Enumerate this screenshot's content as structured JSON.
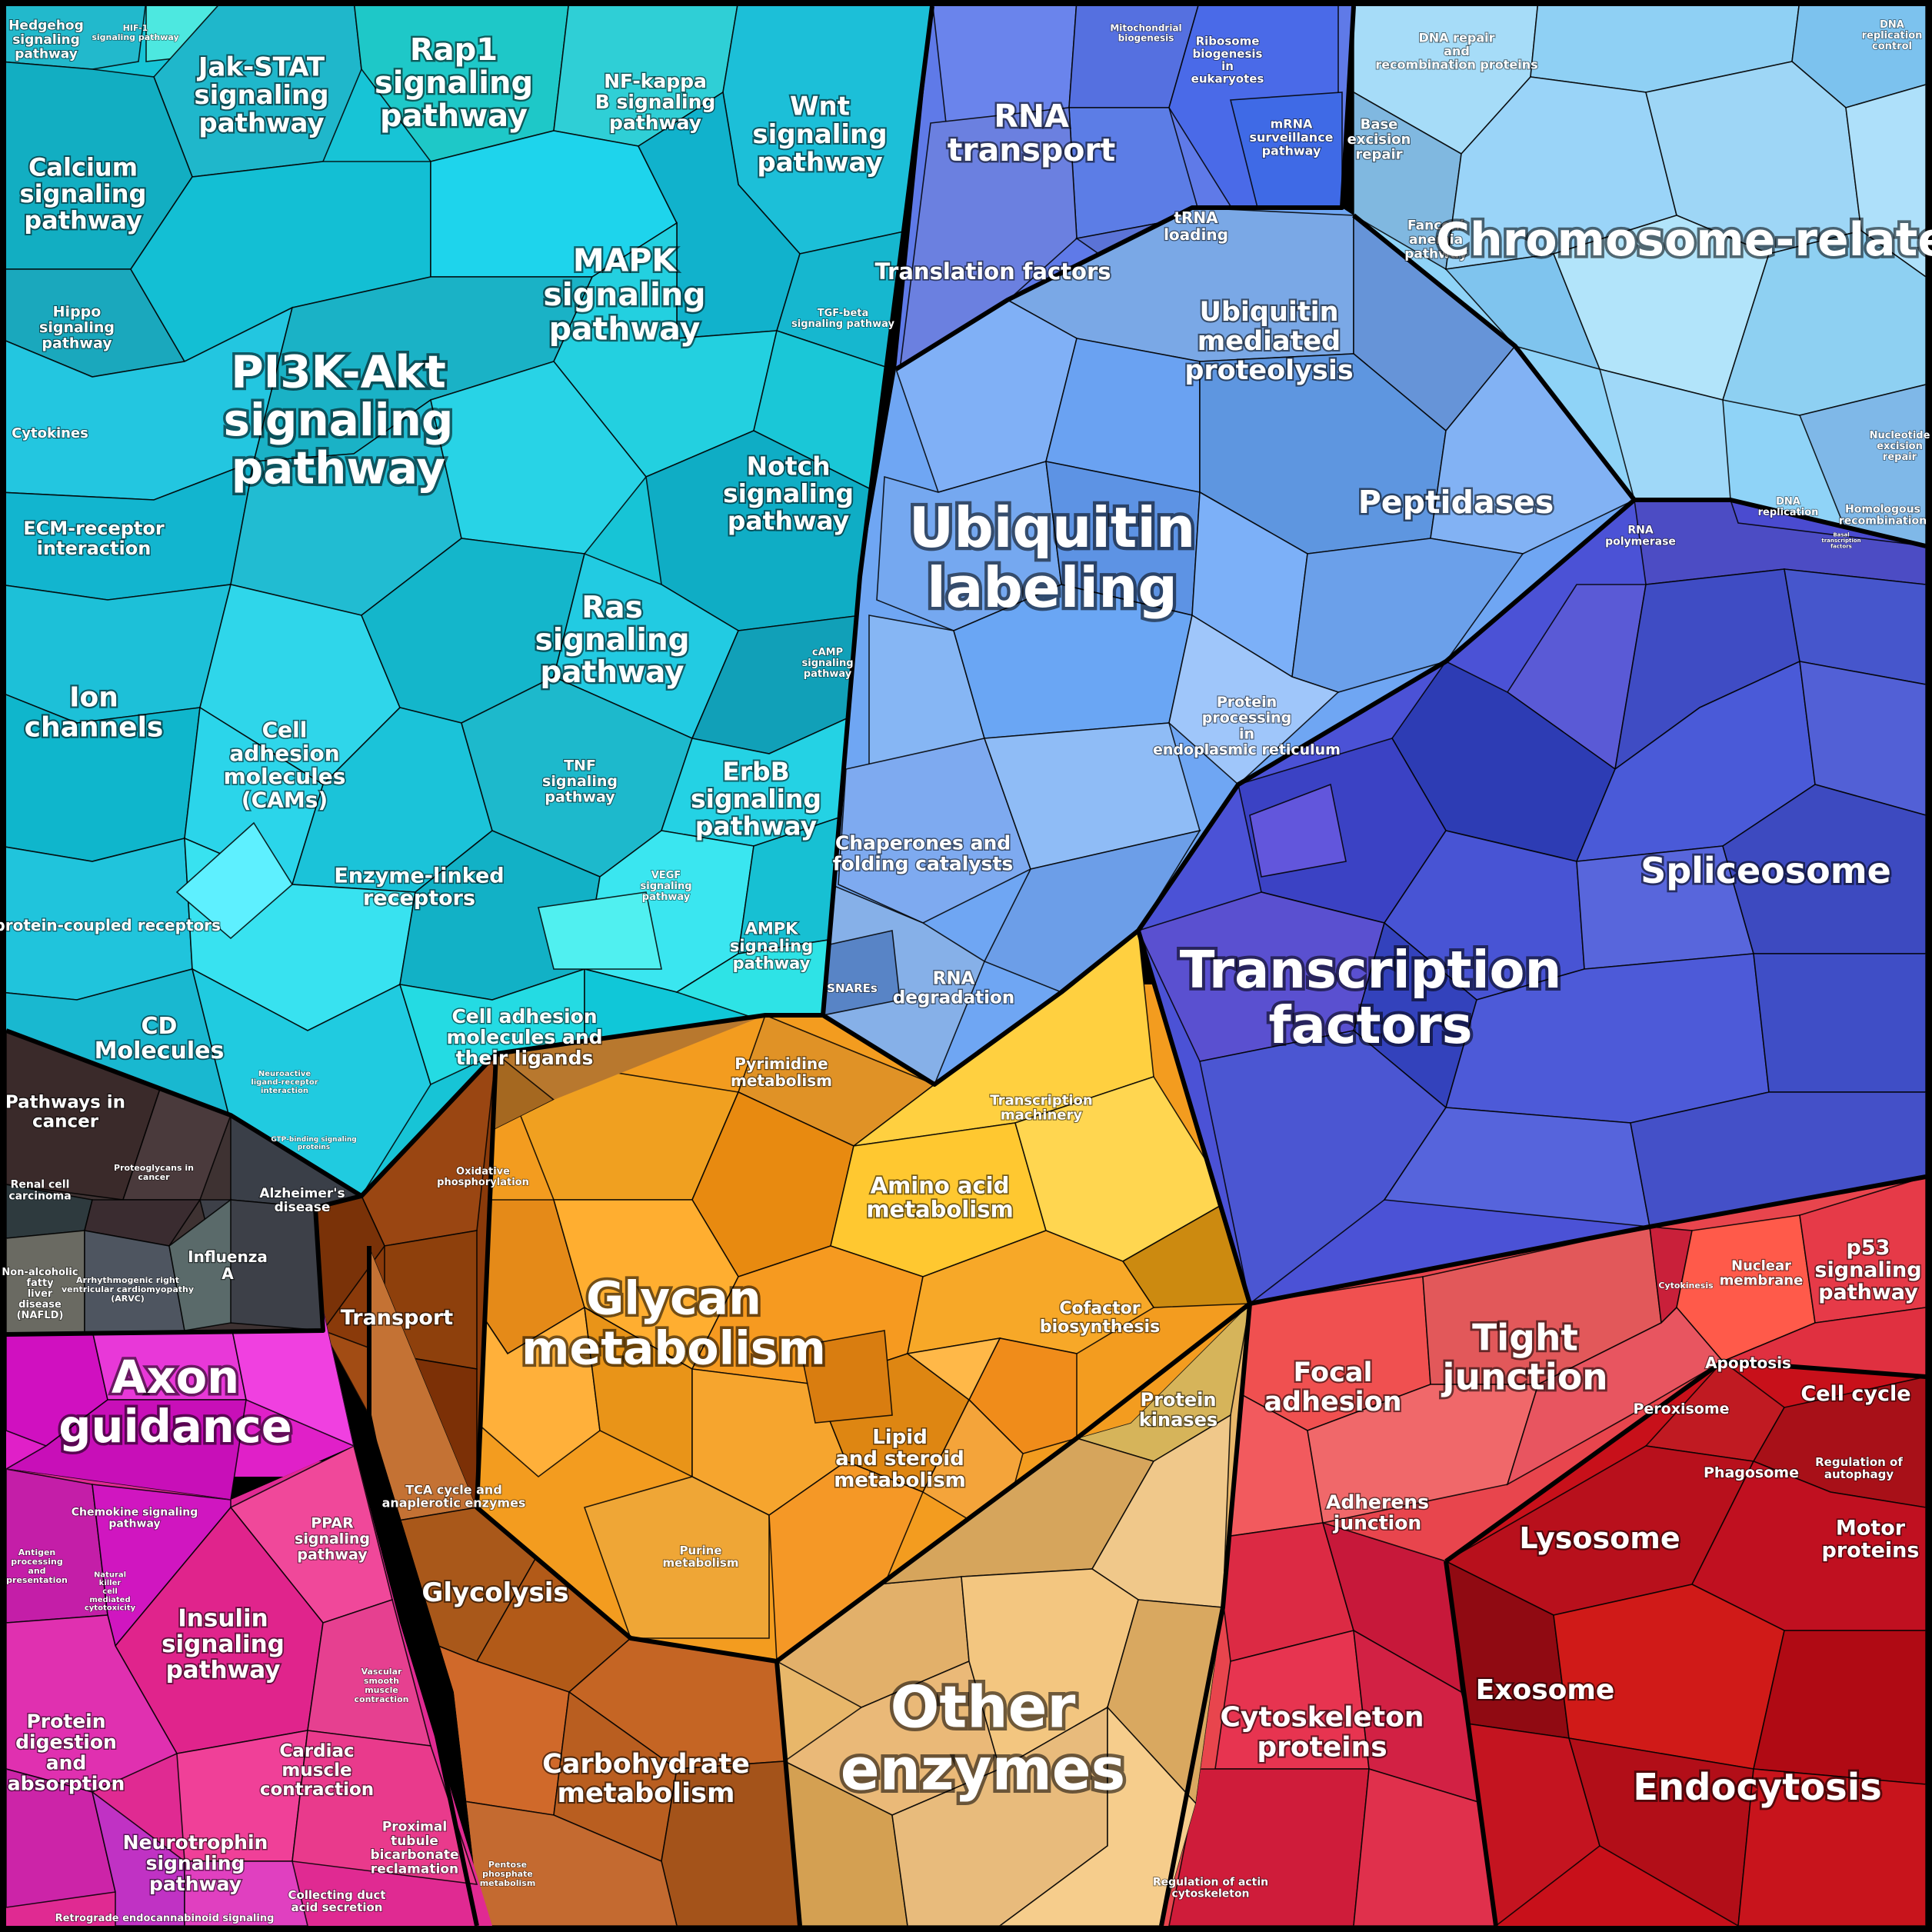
{
  "categories": [
    {
      "id": "signaling",
      "color": "#11c9d9"
    },
    {
      "id": "ubiquitin_labeling",
      "color": "#6fa6f3"
    },
    {
      "id": "chromosome",
      "color": "#8fd3f7"
    },
    {
      "id": "rna",
      "color": "#5f7ae8"
    },
    {
      "id": "transcription",
      "color": "#4b52d6"
    },
    {
      "id": "spliceosome",
      "color": "#3f4fc9"
    },
    {
      "id": "glycan",
      "color": "#f39c1f"
    },
    {
      "id": "other_enzymes",
      "color": "#e8b76a"
    },
    {
      "id": "carbohydrate",
      "color": "#b85f1c"
    },
    {
      "id": "transport",
      "color": "#8a3a0a"
    },
    {
      "id": "red_cell",
      "color": "#e8454d"
    },
    {
      "id": "endocytosis",
      "color": "#c8101a"
    },
    {
      "id": "axon",
      "color": "#e020c8"
    },
    {
      "id": "insulin",
      "color": "#e02a92"
    },
    {
      "id": "disease",
      "color": "#3e3232"
    }
  ],
  "labels": {
    "hedgehog": "Hedgehog signaling pathway",
    "hif1": "HIF-1 signaling pathway",
    "jak_stat": "Jak-STAT signaling pathway",
    "rap1": "Rap1 signaling pathway",
    "nfkb": "NF-kappa B signaling pathway",
    "wnt": "Wnt signaling pathway",
    "calcium": "Calcium signaling pathway",
    "mapk": "MAPK signaling pathway",
    "tgfb": "TGF-beta signaling pathway",
    "hippo": "Hippo signaling pathway",
    "pi3k": "PI3K-Akt signaling pathway",
    "cytokines": "Cytokines",
    "notch": "Notch signaling pathway",
    "ecm": "ECM-receptor interaction",
    "ras": "Ras signaling pathway",
    "camp": "cAMP signaling pathway",
    "ion": "Ion channels",
    "cams": "Cell adhesion molecules (CAMs)",
    "tnf": "TNF signaling pathway",
    "erbb": "ErbB signaling pathway",
    "enzyme_linked": "Enzyme-linked receptors",
    "vegf": "VEGF signaling pathway",
    "gpcr": "G protein-coupled receptors",
    "ampk": "AMPK signaling pathway",
    "cd": "CD Molecules",
    "cam_ligands": "Cell adhesion molecules and their ligands",
    "neuroactive": "Neuroactive ligand-receptor interaction",
    "gtp": "GTP-binding signaling proteins",
    "mito_bio": "Mitochondrial biogenesis",
    "ribosome_bio": "Ribosome biogenesis in eukaryotes",
    "rna_transport": "RNA transport",
    "mrna_surv": "mRNA surveillance pathway",
    "trna": "tRNA loading",
    "transl": "Translation factors",
    "ubiq_prot": "Ubiquitin mediated proteolysis",
    "ubiq_label": "Ubiquitin labeling",
    "peptidases": "Peptidases",
    "protein_er": "Protein processing in endoplasmic reticulum",
    "chaperones": "Chaperones and folding catalysts",
    "rna_deg": "RNA degradation",
    "snares": "SNAREs",
    "dna_repair": "DNA repair and recombination proteins",
    "dna_rep_ctrl": "DNA replication control",
    "base_exc": "Base excision repair",
    "fanconi": "Fanconi anemia pathway",
    "chromosome": "Chromosome-related",
    "nucleotide_exc": "Nucleotide excision repair",
    "dna_rep": "DNA replication",
    "homologous": "Homologous recombination",
    "rna_pol": "RNA polymerase",
    "basal_tf": "Basal transcription factors",
    "spliceosome": "Spliceosome",
    "tf": "Transcription factors",
    "tm": "Transcription machinery",
    "pathways_cancer": "Pathways in cancer",
    "renal": "Renal cell carcinoma",
    "proteoglycans": "Proteoglycans in cancer",
    "alzheimer": "Alzheimer's disease",
    "nafld": "Non-alcoholic fatty liver disease (NAFLD)",
    "arvc": "Arrhythmogenic right ventricular cardiomyopathy (ARVC)",
    "influenza": "Influenza A",
    "pyrimidine": "Pyrimidine metabolism",
    "oxphos": "Oxidative phosphorylation",
    "amino": "Amino acid metabolism",
    "transport": "Transport",
    "glycan": "Glycan metabolism",
    "cofactor": "Cofactor biosynthesis",
    "lipid": "Lipid and steroid metabolism",
    "protein_kinases": "Protein kinases",
    "tca": "TCA cycle and anaplerotic enzymes",
    "purine": "Purine metabolism",
    "glycolysis": "Glycolysis",
    "carbohydrate": "Carbohydrate metabolism",
    "pentose": "Pentose phosphate metabolism",
    "other_enzymes": "Other enzymes",
    "axon": "Axon guidance",
    "chemokine": "Chemokine signaling pathway",
    "antigen": "Antigen processing and presentation",
    "nk": "Natural killer cell mediated cytotoxicity",
    "ppar": "PPAR signaling pathway",
    "insulin": "Insulin signaling pathway",
    "vsmc": "Vascular smooth muscle contraction",
    "protein_dig": "Protein digestion and absorption",
    "cardiac": "Cardiac muscle contraction",
    "neurotrophin": "Neurotrophin signaling pathway",
    "proximal": "Proximal tubule bicarbonate reclamation",
    "collecting": "Collecting duct acid secretion",
    "retrograde": "Retrograde endocannabinoid signaling",
    "focal": "Focal adhesion",
    "tight": "Tight junction",
    "cytokinesis": "Cytokinesis",
    "nuclear_mem": "Nuclear membrane",
    "p53": "p53 signaling pathway",
    "apoptosis": "Apoptosis",
    "cell_cycle": "Cell cycle",
    "adherens": "Adherens junction",
    "peroxisome": "Peroxisome",
    "phagosome": "Phagosome",
    "autophagy": "Regulation of autophagy",
    "lysosome": "Lysosome",
    "motor": "Motor proteins",
    "exosome": "Exosome",
    "cytoskeleton": "Cytoskeleton proteins",
    "endocytosis": "Endocytosis",
    "actin_reg": "Regulation of actin cytoskeleton"
  }
}
